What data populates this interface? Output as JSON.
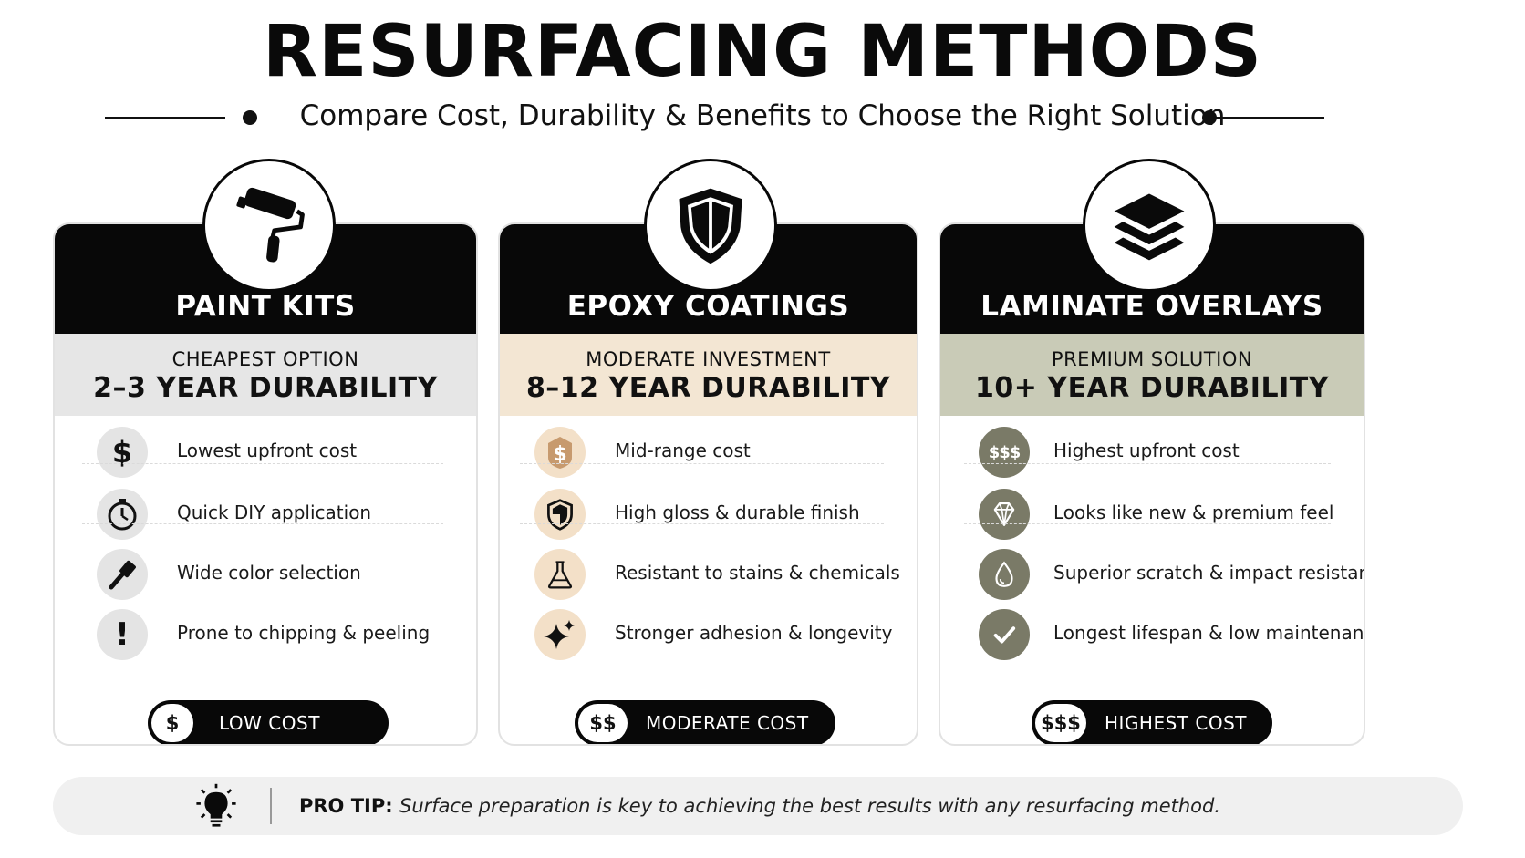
{
  "header": {
    "title": "RESURFACING METHODS",
    "subtitle": "Compare Cost, Durability & Benefits to Choose the Right Solution"
  },
  "colors": {
    "card_head": "#080808",
    "band_paint": "#e6e6e6",
    "band_epoxy": "#f3e6d3",
    "band_laminate": "#c9cbb7",
    "epoxy_icon_bg": "#f3e0c8",
    "epoxy_icon_fg": "#c79a6e",
    "laminate_icon_bg": "#7a7a67",
    "paint_icon_bg": "#e4e4e4"
  },
  "cards": [
    {
      "title": "PAINT KITS",
      "icon": "paint-roller-icon",
      "band_top": "CHEAPEST OPTION",
      "band_main": "2–3 YEAR DURABILITY",
      "features": [
        {
          "icon": "dollar-icon",
          "text": "Lowest upfront cost"
        },
        {
          "icon": "timer-icon",
          "text": "Quick DIY application"
        },
        {
          "icon": "brush-icon",
          "text": "Wide color selection"
        },
        {
          "icon": "exclamation-icon",
          "text": "Prone to chipping & peeling"
        }
      ],
      "cost_symbol": "$",
      "cost_label": "LOW COST"
    },
    {
      "title": "EPOXY COATINGS",
      "icon": "shield-icon",
      "band_top": "MODERATE INVESTMENT",
      "band_main": "8–12 YEAR DURABILITY",
      "features": [
        {
          "icon": "dollar-icon",
          "text": "Mid-range cost"
        },
        {
          "icon": "shield-icon",
          "text": "High gloss & durable finish"
        },
        {
          "icon": "flask-icon",
          "text": "Resistant to stains & chemicals"
        },
        {
          "icon": "sparkle-icon",
          "text": "Stronger adhesion & longevity"
        }
      ],
      "cost_symbol": "$$",
      "cost_label": "MODERATE COST"
    },
    {
      "title": "LAMINATE OVERLAYS",
      "icon": "layers-icon",
      "band_top": "PREMIUM SOLUTION",
      "band_main": "10+ YEAR DURABILITY",
      "features": [
        {
          "icon": "triple-dollar-icon",
          "text": "Highest upfront cost",
          "symbol": "$$$"
        },
        {
          "icon": "diamond-icon",
          "text": "Looks like new & premium feel"
        },
        {
          "icon": "droplet-icon",
          "text": "Superior scratch & impact resistance"
        },
        {
          "icon": "checkmark-icon",
          "text": "Longest lifespan & low maintenance"
        }
      ],
      "cost_symbol": "$$$",
      "cost_label": "HIGHEST COST"
    }
  ],
  "tip": {
    "label": "PRO TIP:",
    "text": "Surface preparation is key to achieving the best results with any resurfacing method."
  }
}
